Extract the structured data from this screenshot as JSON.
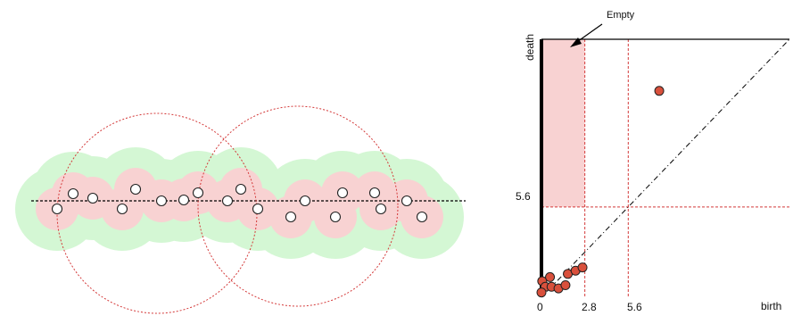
{
  "colors": {
    "outer_cover": "#d4f7d4",
    "inner_cover": "#f8d2d2",
    "point_fill": "#ffffff",
    "point_stroke": "#222222",
    "dashed_red": "#d43a3a",
    "empty_region": "#f8d2d2",
    "diagram_point_fill": "#d9503c",
    "axis": "#000000"
  },
  "left_panel": {
    "points": [
      {
        "x": 64,
        "y": 234
      },
      {
        "x": 82,
        "y": 217
      },
      {
        "x": 104,
        "y": 222
      },
      {
        "x": 137,
        "y": 234
      },
      {
        "x": 152,
        "y": 212
      },
      {
        "x": 181,
        "y": 225
      },
      {
        "x": 206,
        "y": 224
      },
      {
        "x": 222,
        "y": 216
      },
      {
        "x": 255,
        "y": 225
      },
      {
        "x": 270,
        "y": 212
      },
      {
        "x": 289,
        "y": 234
      },
      {
        "x": 326,
        "y": 243
      },
      {
        "x": 342,
        "y": 225
      },
      {
        "x": 376,
        "y": 243
      },
      {
        "x": 384,
        "y": 216
      },
      {
        "x": 420,
        "y": 216
      },
      {
        "x": 427,
        "y": 234
      },
      {
        "x": 456,
        "y": 225
      },
      {
        "x": 473,
        "y": 243
      }
    ]
  },
  "right_panel": {
    "annotation": "Empty",
    "y_axis_label": "death",
    "x_axis_label": "birth",
    "y_tick_label": "5.6",
    "x_tick_labels": [
      "0",
      "2.8",
      "5.6"
    ],
    "thresholds": {
      "birth": [
        2.8,
        5.6
      ],
      "death": [
        5.6
      ]
    },
    "domain": {
      "birth_max": 16.0,
      "death_max": 16.0
    },
    "points": [
      {
        "birth": 0.05,
        "death": 1.0
      },
      {
        "birth": 0.25,
        "death": 0.65
      },
      {
        "birth": 0.0,
        "death": 0.3
      },
      {
        "birth": 0.55,
        "death": 1.25
      },
      {
        "birth": 0.65,
        "death": 0.65
      },
      {
        "birth": 1.1,
        "death": 0.55
      },
      {
        "birth": 1.55,
        "death": 0.75
      },
      {
        "birth": 1.7,
        "death": 1.45
      },
      {
        "birth": 2.2,
        "death": 1.65
      },
      {
        "birth": 2.65,
        "death": 1.85
      },
      {
        "birth": 7.6,
        "death": 12.8
      }
    ]
  }
}
